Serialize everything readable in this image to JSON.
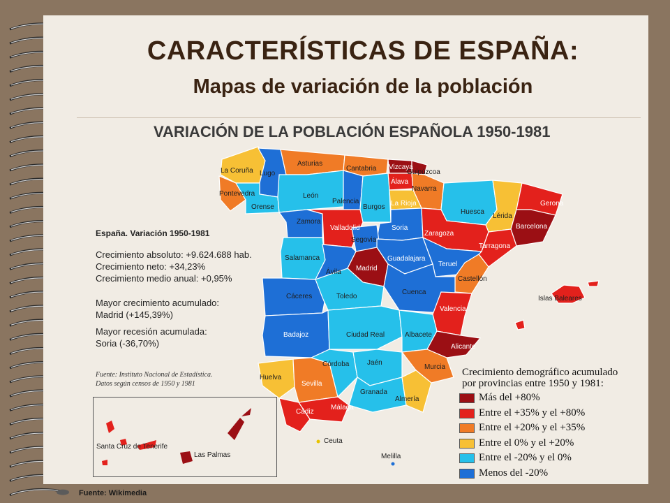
{
  "slide": {
    "title": "CARACTERÍSTICAS DE ESPAÑA:",
    "subtitle": "Mapas de variación de la población",
    "footer": "Fuente: Wikimedia"
  },
  "map": {
    "title": "VARIACIÓN DE LA POBLACIÓN ESPAÑOLA 1950-1981",
    "info": {
      "heading": "España. Variación 1950-1981",
      "line1": "Crecimiento absoluto: +9.624.688 hab.",
      "line2": "Crecimiento neto: +34,23%",
      "line3": "Crecimiento medio anual: +0,95%",
      "line4": "Mayor crecimiento acumulado:",
      "line5": "Madrid (+145,39%)",
      "line6": "Mayor recesión acumulada:",
      "line7": "Soria (-36,70%)"
    },
    "source": {
      "line1": "Fuente: Instituto Nacional de Estadística.",
      "line2": "Datos según censos de 1950 y 1981"
    },
    "legend": {
      "title1": "Crecimiento demográfico acumulado",
      "title2": "por provincias entre 1950 y 1981:",
      "items": [
        {
          "label": "Más del +80%",
          "color": "#9b0f14"
        },
        {
          "label": "Entre el +35% y el +80%",
          "color": "#e3211c"
        },
        {
          "label": "Entre el +20% y el +35%",
          "color": "#f07b26"
        },
        {
          "label": "Entre el 0% y el +20%",
          "color": "#f7c035"
        },
        {
          "label": "Entre el -20% y el 0%",
          "color": "#26c0ea"
        },
        {
          "label": "Menos del -20%",
          "color": "#1e6fd6"
        }
      ]
    },
    "provinces": {
      "la_coruna": "La Coruña",
      "lugo": "Lugo",
      "asturias": "Asturias",
      "cantabria": "Cantabria",
      "vizcaya": "Vizcaya",
      "guipuzcoa": "Guipúzcoa",
      "alava": "Álava",
      "navarra": "Navarra",
      "pontevedra": "Pontevedra",
      "orense": "Orense",
      "leon": "León",
      "palencia": "Palencia",
      "burgos": "Burgos",
      "la_rioja": "La Rioja",
      "huesca": "Huesca",
      "lerida": "Lérida",
      "gerona": "Gerona",
      "barcelona": "Barcelona",
      "zamora": "Zamora",
      "valladolid": "Valladolid",
      "soria": "Soria",
      "zaragoza": "Zaragoza",
      "tarragona": "Tarragona",
      "segovia": "Segovia",
      "salamanca": "Salamanca",
      "madrid": "Madrid",
      "guadalajara": "Guadalajara",
      "teruel": "Teruel",
      "avila": "Ávila",
      "castellon": "Castellón",
      "caceres": "Cáceres",
      "toledo": "Toledo",
      "cuenca": "Cuenca",
      "valencia": "Valencia",
      "islas_baleares": "Islas Baleares",
      "badajoz": "Badajoz",
      "ciudad_real": "Ciudad Real",
      "albacete": "Albacete",
      "alicante": "Alicante",
      "cordoba": "Córdoba",
      "jaen": "Jaén",
      "murcia": "Murcia",
      "huelva": "Huelva",
      "sevilla": "Sevilla",
      "granada": "Granada",
      "almeria": "Almería",
      "cadiz": "Cádiz",
      "malaga": "Málaga",
      "ceuta": "Ceuta",
      "melilla": "Melilla",
      "santa_cruz": "Santa Cruz de Tenerife",
      "las_palmas": "Las Palmas"
    }
  }
}
